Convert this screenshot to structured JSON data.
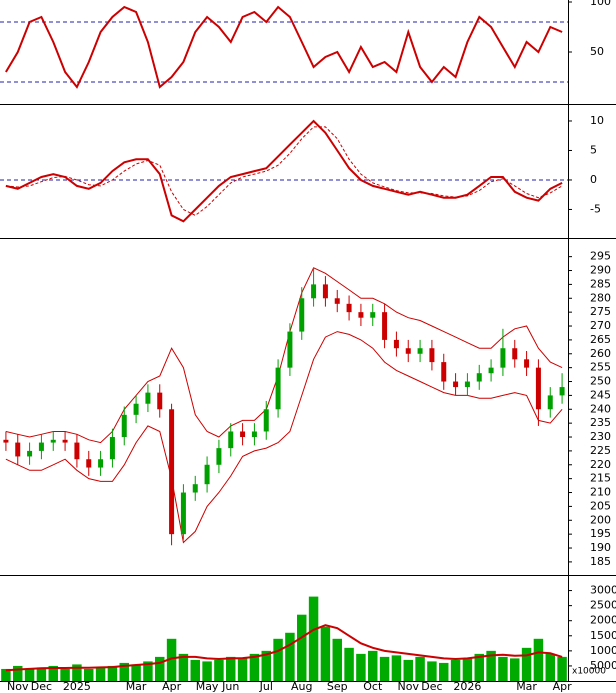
{
  "chart_data": [
    {
      "type": "line",
      "ylim": [
        0,
        100
      ],
      "yticks": [
        50,
        100
      ],
      "levels": [
        80,
        20
      ],
      "level_color": "#2222aa",
      "series": [
        {
          "color": "#cc0000",
          "style": "solid",
          "values": [
            30,
            50,
            80,
            85,
            60,
            30,
            15,
            40,
            70,
            85,
            95,
            90,
            60,
            15,
            25,
            40,
            70,
            85,
            75,
            60,
            85,
            90,
            80,
            95,
            85,
            60,
            35,
            45,
            50,
            30,
            55,
            35,
            40,
            30,
            70,
            35,
            20,
            35,
            25,
            60,
            85,
            75,
            55,
            35,
            60,
            50,
            75,
            70
          ]
        }
      ]
    },
    {
      "type": "line",
      "ylim": [
        -9.5,
        12.2
      ],
      "yticks": [
        10,
        5,
        0,
        -5
      ],
      "levels": [
        0
      ],
      "level_color": "#2222aa",
      "series": [
        {
          "color": "#cc0000",
          "style": "solid",
          "values": [
            -1,
            -1.5,
            -0.5,
            0.5,
            1,
            0.5,
            -1,
            -1.5,
            -0.5,
            1.5,
            3,
            3.5,
            3.5,
            1,
            -6,
            -7,
            -5,
            -3,
            -1,
            0.5,
            1,
            1.5,
            2,
            4,
            6,
            8,
            10,
            8,
            5,
            2,
            0,
            -1,
            -1.5,
            -2,
            -2.5,
            -2,
            -2.5,
            -3,
            -3,
            -2.5,
            -1,
            0.5,
            0.5,
            -2,
            -3,
            -3.5,
            -1.5,
            -0.5
          ]
        },
        {
          "color": "#cc0000",
          "style": "dashed",
          "values": [
            -1,
            -1.2,
            -1,
            -0.3,
            0.4,
            0.6,
            0,
            -0.8,
            -1,
            0,
            1.5,
            2.7,
            3.3,
            2.5,
            -2,
            -5,
            -6,
            -4.5,
            -2.5,
            -0.5,
            0.5,
            1,
            1.5,
            2.5,
            4.5,
            7,
            9,
            9,
            7,
            3.5,
            1,
            -0.5,
            -1.2,
            -1.8,
            -2.2,
            -2.2,
            -2.3,
            -2.7,
            -2.9,
            -2.7,
            -1.8,
            -0.3,
            0.2,
            -1,
            -2.3,
            -3,
            -2.2,
            -1
          ]
        }
      ]
    },
    {
      "type": "candlestick",
      "ylim": [
        181,
        301
      ],
      "yticks": [
        185,
        190,
        195,
        200,
        205,
        210,
        215,
        220,
        225,
        230,
        235,
        240,
        245,
        250,
        255,
        260,
        265,
        270,
        275,
        280,
        285,
        290,
        295
      ],
      "up_color": "#00a000",
      "down_color": "#cc0000",
      "open": [
        229,
        228,
        223,
        225,
        228,
        229,
        228,
        222,
        219,
        222,
        230,
        238,
        242,
        246,
        240,
        195,
        210,
        213,
        220,
        226,
        232,
        230,
        232,
        240,
        255,
        268,
        280,
        285,
        280,
        278,
        275,
        273,
        275,
        265,
        262,
        260,
        262,
        257,
        250,
        248,
        250,
        253,
        255,
        262,
        258,
        255,
        240,
        245
      ],
      "high": [
        232,
        231,
        228,
        231,
        232,
        232,
        231,
        225,
        225,
        233,
        241,
        245,
        249,
        249,
        242,
        213,
        216,
        223,
        229,
        235,
        235,
        235,
        243,
        258,
        271,
        284,
        291,
        288,
        283,
        281,
        278,
        278,
        278,
        268,
        265,
        265,
        265,
        260,
        253,
        253,
        256,
        258,
        269,
        265,
        261,
        258,
        248,
        253
      ],
      "low": [
        225,
        220,
        220,
        222,
        225,
        225,
        219,
        216,
        216,
        219,
        227,
        235,
        239,
        237,
        191,
        193,
        207,
        210,
        217,
        223,
        227,
        227,
        229,
        237,
        252,
        265,
        277,
        277,
        275,
        272,
        270,
        270,
        262,
        259,
        257,
        257,
        254,
        247,
        245,
        245,
        247,
        250,
        252,
        255,
        252,
        234,
        237,
        242
      ],
      "close": [
        228,
        223,
        225,
        228,
        229,
        228,
        222,
        219,
        222,
        230,
        238,
        242,
        246,
        240,
        195,
        210,
        213,
        220,
        226,
        232,
        230,
        232,
        240,
        255,
        268,
        280,
        285,
        280,
        278,
        275,
        273,
        275,
        265,
        262,
        260,
        262,
        257,
        250,
        248,
        250,
        253,
        255,
        262,
        258,
        255,
        240,
        245,
        248
      ],
      "overlays": [
        {
          "color": "#cc0000",
          "values": [
            232,
            231,
            230,
            231,
            232,
            232,
            231,
            229,
            228,
            232,
            240,
            245,
            250,
            252,
            262,
            255,
            238,
            232,
            230,
            234,
            236,
            236,
            240,
            252,
            268,
            282,
            291,
            289,
            286,
            283,
            280,
            280,
            278,
            275,
            273,
            272,
            270,
            268,
            266,
            264,
            262,
            262,
            266,
            269,
            270,
            262,
            257,
            255
          ]
        },
        {
          "color": "#cc0000",
          "values": [
            222,
            220,
            218,
            218,
            220,
            222,
            218,
            215,
            214,
            214,
            220,
            228,
            234,
            232,
            215,
            192,
            196,
            205,
            210,
            216,
            223,
            225,
            226,
            228,
            232,
            245,
            258,
            266,
            268,
            267,
            265,
            262,
            257,
            254,
            252,
            250,
            248,
            246,
            245,
            245,
            244,
            244,
            245,
            246,
            245,
            236,
            235,
            240
          ]
        }
      ]
    },
    {
      "type": "bar",
      "ylim": [
        0,
        34500
      ],
      "yticks": [
        5000,
        10000,
        15000,
        20000,
        25000,
        30000
      ],
      "unit_label": "x10000",
      "color": "#00aa00",
      "categories": [
        null,
        "Nov",
        null,
        "Dec",
        null,
        null,
        "2025",
        null,
        null,
        null,
        null,
        "Mar",
        null,
        null,
        "Apr",
        null,
        null,
        "May",
        null,
        "Jun",
        null,
        null,
        "Jul",
        null,
        null,
        "Aug",
        null,
        null,
        "Sep",
        null,
        null,
        "Oct",
        null,
        null,
        "Nov",
        null,
        "Dec",
        null,
        null,
        "2026",
        null,
        null,
        null,
        null,
        "Mar",
        null,
        null,
        "Apr"
      ],
      "values": [
        4000,
        5000,
        4000,
        4500,
        5000,
        4000,
        5500,
        4000,
        4500,
        5000,
        6000,
        5500,
        6500,
        8000,
        14000,
        9000,
        7000,
        6500,
        7000,
        8000,
        7500,
        9000,
        10000,
        14000,
        16000,
        22000,
        28000,
        18000,
        14000,
        11000,
        9000,
        10000,
        8000,
        8500,
        7000,
        8000,
        6500,
        6000,
        7000,
        7500,
        9000,
        10000,
        8000,
        7500,
        11000,
        14000,
        9000,
        8000
      ],
      "overlays": [
        {
          "color": "#cc0000",
          "values": [
            3500,
            3800,
            4000,
            4200,
            4300,
            4300,
            4400,
            4400,
            4500,
            4600,
            5000,
            5300,
            5600,
            6000,
            7500,
            8000,
            8000,
            7500,
            7300,
            7500,
            7600,
            8000,
            8800,
            10000,
            12000,
            14500,
            17000,
            18500,
            17500,
            15000,
            12500,
            11000,
            10000,
            9500,
            9000,
            8500,
            8000,
            7500,
            7300,
            7500,
            8000,
            8500,
            8700,
            8400,
            8500,
            9500,
            9200,
            8000
          ]
        }
      ]
    }
  ]
}
